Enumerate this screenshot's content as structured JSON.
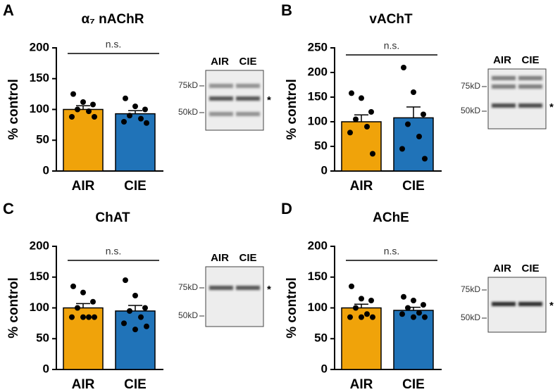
{
  "chart_data": [
    {
      "type": "bar",
      "panel": "A",
      "title": "α₇ nAChR",
      "ylabel": "% control",
      "categories": [
        "AIR",
        "CIE"
      ],
      "values": [
        100,
        93
      ],
      "errors": [
        6,
        5
      ],
      "points": [
        [
          125,
          112,
          108,
          100,
          97,
          88,
          88
        ],
        [
          118,
          105,
          100,
          90,
          85,
          80,
          78
        ]
      ],
      "colors": [
        "#f0a30a",
        "#2073b8"
      ],
      "ylim": [
        0,
        200
      ],
      "yticks": [
        0,
        50,
        100,
        150,
        200
      ],
      "annotation": "n.s.",
      "blot": {
        "lanes": [
          "AIR",
          "CIE"
        ],
        "markers": [
          "75kD",
          "50kD"
        ],
        "band_marker": "*"
      }
    },
    {
      "type": "bar",
      "panel": "B",
      "title": "vAChT",
      "ylabel": "% control",
      "categories": [
        "AIR",
        "CIE"
      ],
      "values": [
        100,
        108
      ],
      "errors": [
        14,
        22
      ],
      "points": [
        [
          158,
          148,
          120,
          105,
          90,
          78,
          35
        ],
        [
          210,
          160,
          115,
          95,
          70,
          45,
          25
        ]
      ],
      "colors": [
        "#f0a30a",
        "#2073b8"
      ],
      "ylim": [
        0,
        250
      ],
      "yticks": [
        0,
        50,
        100,
        150,
        200,
        250
      ],
      "annotation": "n.s.",
      "blot": {
        "lanes": [
          "AIR",
          "CIE"
        ],
        "markers": [
          "75kD",
          "50kD"
        ],
        "band_marker": "*"
      }
    },
    {
      "type": "bar",
      "panel": "C",
      "title": "ChAT",
      "ylabel": "% control",
      "categories": [
        "AIR",
        "CIE"
      ],
      "values": [
        100,
        95
      ],
      "errors": [
        7,
        9
      ],
      "points": [
        [
          135,
          125,
          110,
          100,
          85,
          85,
          85,
          85
        ],
        [
          145,
          120,
          100,
          95,
          85,
          75,
          70,
          65
        ]
      ],
      "colors": [
        "#f0a30a",
        "#2073b8"
      ],
      "ylim": [
        0,
        200
      ],
      "yticks": [
        0,
        50,
        100,
        150,
        200
      ],
      "annotation": "n.s.",
      "blot": {
        "lanes": [
          "AIR",
          "CIE"
        ],
        "markers": [
          "75kD",
          "50kD"
        ],
        "band_marker": "*"
      }
    },
    {
      "type": "bar",
      "panel": "D",
      "title": "AChE",
      "ylabel": "% control",
      "categories": [
        "AIR",
        "CIE"
      ],
      "values": [
        100,
        96
      ],
      "errors": [
        6,
        5
      ],
      "points": [
        [
          135,
          115,
          112,
          100,
          90,
          85,
          85,
          85
        ],
        [
          118,
          112,
          105,
          100,
          92,
          90,
          85,
          85
        ]
      ],
      "colors": [
        "#f0a30a",
        "#2073b8"
      ],
      "ylim": [
        0,
        200
      ],
      "yticks": [
        0,
        50,
        100,
        150,
        200
      ],
      "annotation": "n.s.",
      "blot": {
        "lanes": [
          "AIR",
          "CIE"
        ],
        "markers": [
          "75kD",
          "50kD"
        ],
        "band_marker": "*"
      }
    }
  ]
}
